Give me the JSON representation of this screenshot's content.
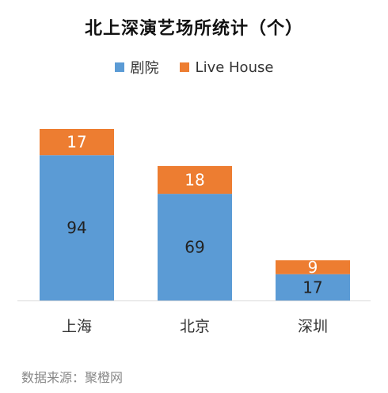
{
  "chart_data": {
    "type": "bar",
    "stacked": true,
    "title": "北上深演艺场所统计（个）",
    "categories": [
      "上海",
      "北京",
      "深圳"
    ],
    "series": [
      {
        "name": "剧院",
        "values": [
          94,
          69,
          17
        ],
        "color": "#5b9bd5"
      },
      {
        "name": "Live House",
        "values": [
          17,
          18,
          9
        ],
        "color": "#ed7d31"
      }
    ],
    "legend_position": "top",
    "grid": false,
    "ylim": [
      0,
      115
    ]
  },
  "source_text": "数据来源：聚橙网"
}
